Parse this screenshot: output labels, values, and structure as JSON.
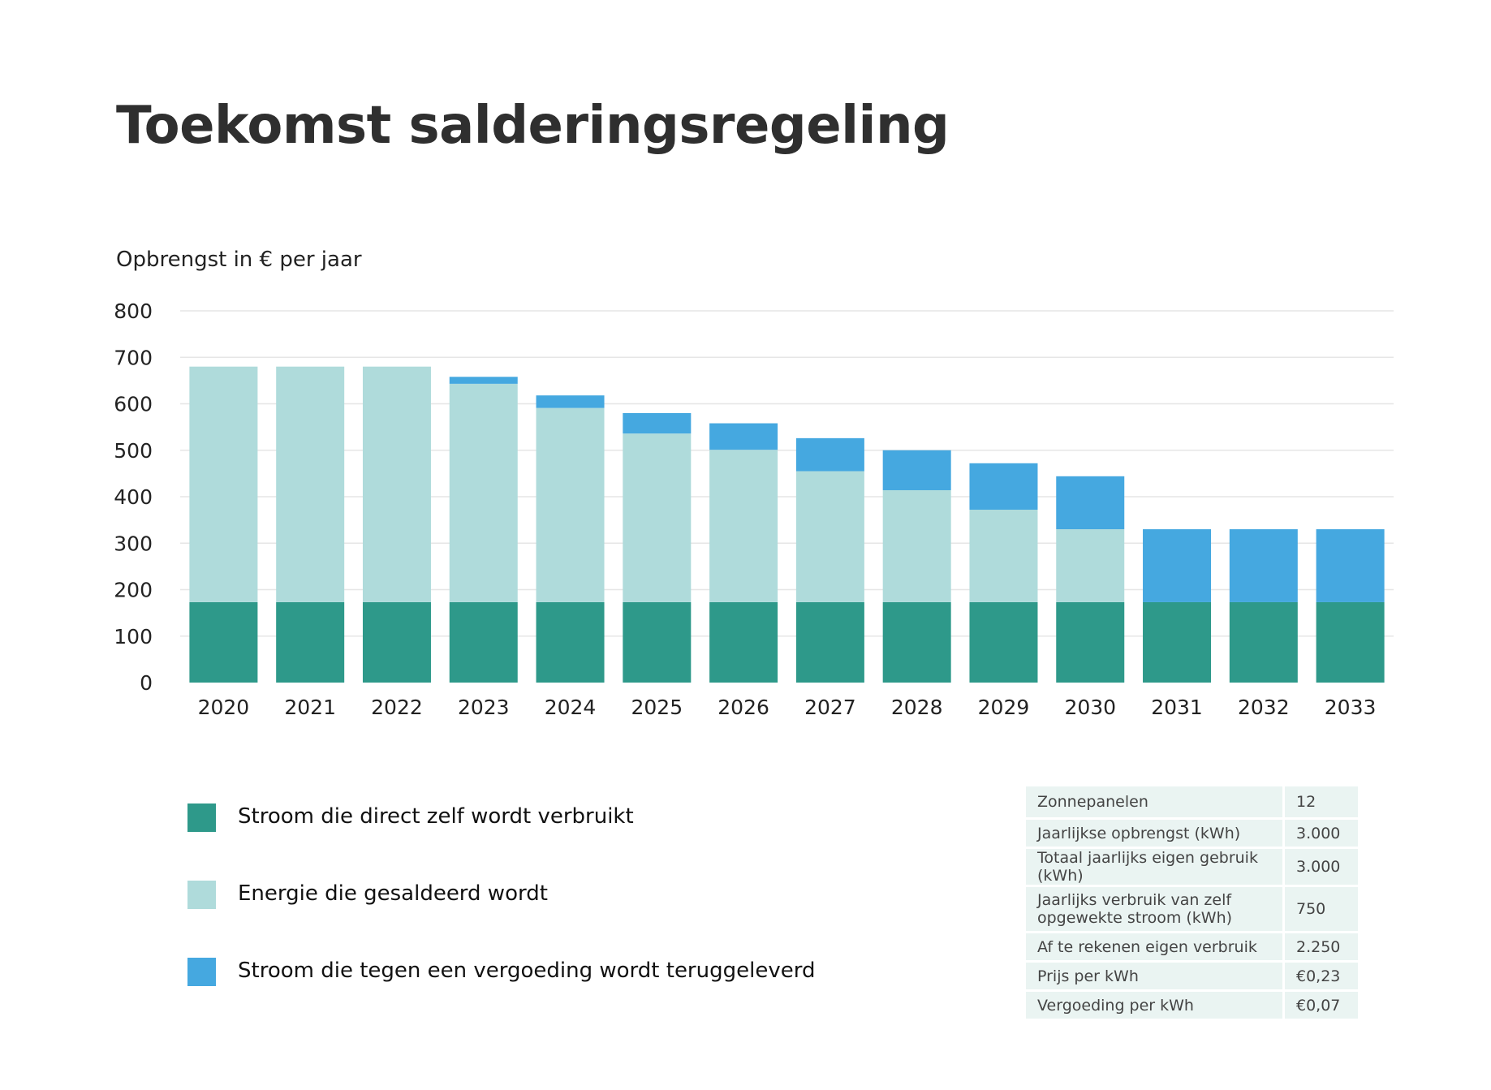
{
  "title": "Toekomst salderingsregeling",
  "chart_data": {
    "type": "bar",
    "stacked": true,
    "ylabel": "Opbrengst in € per jaar",
    "ylim": [
      0,
      800
    ],
    "yticks": [
      0,
      100,
      200,
      300,
      400,
      500,
      600,
      700,
      800
    ],
    "grid": true,
    "categories": [
      "2020",
      "2021",
      "2022",
      "2023",
      "2024",
      "2025",
      "2026",
      "2027",
      "2028",
      "2029",
      "2030",
      "2031",
      "2032",
      "2033"
    ],
    "series": [
      {
        "name": "Stroom die direct zelf wordt verbruikt",
        "color": "#2e998a",
        "values": [
          173,
          173,
          173,
          173,
          173,
          173,
          173,
          173,
          173,
          173,
          173,
          173,
          173,
          173
        ]
      },
      {
        "name": "Energie die gesaldeerd wordt",
        "color": "#afdbdb",
        "values": [
          507,
          507,
          507,
          470,
          418,
          363,
          328,
          282,
          241,
          199,
          157,
          0,
          0,
          0
        ]
      },
      {
        "name": "Stroom die tegen een vergoeding wordt teruggeleverd",
        "color": "#45a8e0",
        "values": [
          0,
          0,
          0,
          15,
          27,
          44,
          57,
          71,
          86,
          100,
          114,
          157,
          157,
          157
        ]
      }
    ]
  },
  "legend": [
    {
      "label": "Stroom die direct zelf wordt verbruikt",
      "color": "#2e998a"
    },
    {
      "label": "Energie die gesaldeerd wordt",
      "color": "#afdbdb"
    },
    {
      "label": "Stroom die tegen een vergoeding wordt teruggeleverd",
      "color": "#45a8e0"
    }
  ],
  "info_table": [
    {
      "label": "Zonnepanelen",
      "value": "12"
    },
    {
      "label": "Jaarlijkse opbrengst (kWh)",
      "value": "3.000"
    },
    {
      "label": "Totaal jaarlijks eigen gebruik (kWh)",
      "value": "3.000"
    },
    {
      "label": "Jaarlijks verbruik van zelf opgewekte stroom (kWh)",
      "value": "750"
    },
    {
      "label": "Af te rekenen eigen verbruik",
      "value": "2.250"
    },
    {
      "label": "Prijs per kWh",
      "value": "€0,23"
    },
    {
      "label": "Vergoeding per kWh",
      "value": "€0,07"
    }
  ]
}
